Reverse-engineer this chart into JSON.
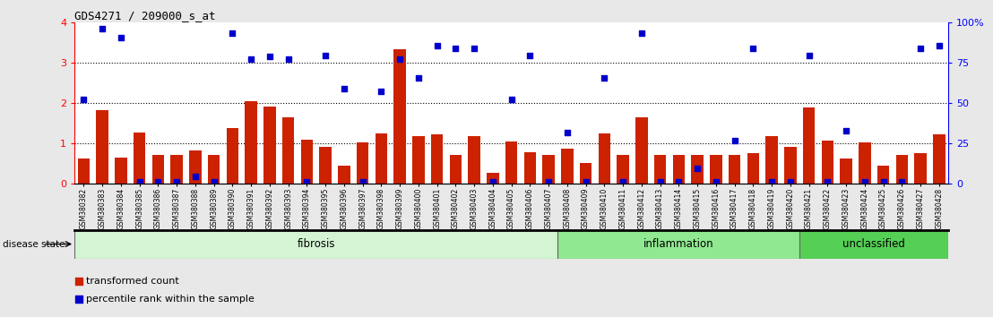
{
  "title": "GDS4271 / 209000_s_at",
  "samples": [
    "GSM380382",
    "GSM380383",
    "GSM380384",
    "GSM380385",
    "GSM380386",
    "GSM380387",
    "GSM380388",
    "GSM380389",
    "GSM380390",
    "GSM380391",
    "GSM380392",
    "GSM380393",
    "GSM380394",
    "GSM380395",
    "GSM380396",
    "GSM380397",
    "GSM380398",
    "GSM380399",
    "GSM380400",
    "GSM380401",
    "GSM380402",
    "GSM380403",
    "GSM380404",
    "GSM380405",
    "GSM380406",
    "GSM380407",
    "GSM380408",
    "GSM380409",
    "GSM380410",
    "GSM380411",
    "GSM380412",
    "GSM380413",
    "GSM380414",
    "GSM380415",
    "GSM380416",
    "GSM380417",
    "GSM380418",
    "GSM380419",
    "GSM380420",
    "GSM380421",
    "GSM380422",
    "GSM380423",
    "GSM380424",
    "GSM380425",
    "GSM380426",
    "GSM380427",
    "GSM380428"
  ],
  "bar_values": [
    0.62,
    1.82,
    0.65,
    1.28,
    0.72,
    0.72,
    0.82,
    0.72,
    1.38,
    2.05,
    1.92,
    1.65,
    1.1,
    0.92,
    0.45,
    1.03,
    1.25,
    3.32,
    1.18,
    1.22,
    0.72,
    1.18,
    0.28,
    1.05,
    0.78,
    0.72,
    0.88,
    0.52,
    1.25,
    0.72,
    1.65,
    0.72,
    0.72,
    0.72,
    0.72,
    0.72,
    0.75,
    1.18,
    0.92,
    1.88,
    1.08,
    0.62,
    1.02,
    0.45,
    0.72,
    0.75,
    1.22
  ],
  "dot_values": [
    2.08,
    3.85,
    3.62,
    0.05,
    0.05,
    0.05,
    0.18,
    0.05,
    3.72,
    3.08,
    3.15,
    3.08,
    0.05,
    3.18,
    2.35,
    0.05,
    2.28,
    3.08,
    2.62,
    3.42,
    3.35,
    3.35,
    0.05,
    2.08,
    3.18,
    0.05,
    1.28,
    0.05,
    2.62,
    0.05,
    3.72,
    0.05,
    0.05,
    0.38,
    0.05,
    1.08,
    3.35,
    0.05,
    0.05,
    3.18,
    0.05,
    1.32,
    0.05,
    0.05,
    0.05,
    3.35,
    3.42
  ],
  "disease_groups": [
    {
      "label": "fibrosis",
      "start": 0,
      "end": 26,
      "color": "#d4f5d4"
    },
    {
      "label": "inflammation",
      "start": 26,
      "end": 39,
      "color": "#90e890"
    },
    {
      "label": "unclassified",
      "start": 39,
      "end": 47,
      "color": "#55d055"
    }
  ],
  "bar_color": "#cc2200",
  "dot_color": "#0000cc",
  "ylim_left": [
    0,
    4
  ],
  "ylim_right": [
    0,
    100
  ],
  "yticks_left": [
    0,
    1,
    2,
    3,
    4
  ],
  "yticks_right": [
    0,
    25,
    50,
    75,
    100
  ],
  "bg_color": "#e8e8e8",
  "plot_bg": "#ffffff",
  "legend_red_label": "transformed count",
  "legend_blue_label": "percentile rank within the sample",
  "disease_state_label": "disease state"
}
